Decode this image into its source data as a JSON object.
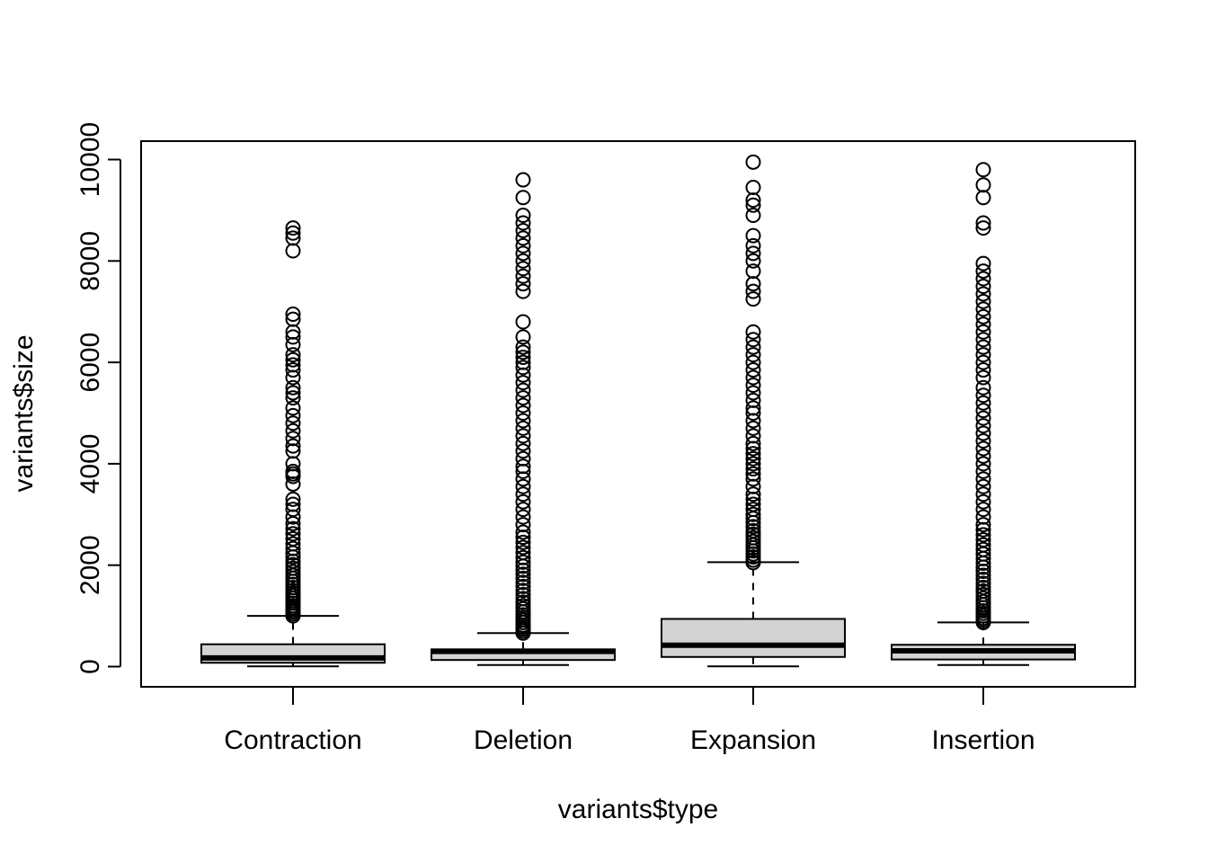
{
  "chart_data": {
    "type": "boxplot",
    "title": "",
    "xlabel": "variants$type",
    "ylabel": "variants$size",
    "ylim": [
      -400,
      10350
    ],
    "y_ticks": [
      0,
      2000,
      4000,
      6000,
      8000,
      10000
    ],
    "grid": false,
    "box_fill": "#d3d3d3",
    "categories": [
      "Contraction",
      "Deletion",
      "Expansion",
      "Insertion"
    ],
    "boxes": [
      {
        "name": "Contraction",
        "lower_whisker": 5,
        "q1": 75,
        "median": 170,
        "q3": 440,
        "upper_whisker": 1000,
        "outliers": [
          1000,
          1040,
          1080,
          1120,
          1160,
          1200,
          1250,
          1300,
          1350,
          1400,
          1450,
          1500,
          1560,
          1620,
          1680,
          1740,
          1800,
          1870,
          1940,
          2010,
          2080,
          2160,
          2240,
          2330,
          2420,
          2520,
          2620,
          2720,
          2820,
          2950,
          3100,
          3200,
          3300,
          3600,
          3750,
          3800,
          3850,
          4000,
          4250,
          4350,
          4500,
          4650,
          4800,
          4950,
          5100,
          5300,
          5400,
          5500,
          5700,
          5850,
          5950,
          6050,
          6150,
          6350,
          6500,
          6600,
          6850,
          6950,
          8200,
          8450,
          8550,
          8650
        ]
      },
      {
        "name": "Deletion",
        "lower_whisker": 30,
        "q1": 130,
        "median": 300,
        "q3": 340,
        "upper_whisker": 660,
        "outliers": [
          660,
          700,
          740,
          780,
          820,
          870,
          920,
          970,
          1020,
          1080,
          1140,
          1200,
          1270,
          1340,
          1420,
          1500,
          1580,
          1660,
          1740,
          1820,
          1900,
          1980,
          2060,
          2150,
          2250,
          2350,
          2450,
          2550,
          2650,
          2800,
          2950,
          3100,
          3250,
          3400,
          3550,
          3700,
          3850,
          3950,
          4100,
          4250,
          4400,
          4550,
          4700,
          4850,
          5000,
          5150,
          5300,
          5450,
          5600,
          5750,
          5900,
          6000,
          6100,
          6200,
          6300,
          6500,
          6800,
          7400,
          7550,
          7700,
          7850,
          8000,
          8150,
          8300,
          8450,
          8600,
          8750,
          8900,
          9250,
          9600
        ]
      },
      {
        "name": "Expansion",
        "lower_whisker": 5,
        "q1": 190,
        "median": 420,
        "q3": 940,
        "upper_whisker": 2060,
        "outliers": [
          2050,
          2100,
          2160,
          2220,
          2280,
          2340,
          2400,
          2470,
          2540,
          2610,
          2680,
          2760,
          2840,
          2920,
          3000,
          3100,
          3200,
          3300,
          3400,
          3550,
          3700,
          3800,
          3900,
          4000,
          4100,
          4200,
          4300,
          4400,
          4550,
          4700,
          4850,
          5000,
          5100,
          5250,
          5400,
          5550,
          5700,
          5850,
          6000,
          6150,
          6300,
          6450,
          6600,
          7250,
          7400,
          7550,
          7800,
          8000,
          8150,
          8300,
          8500,
          8900,
          9100,
          9200,
          9450,
          9950
        ]
      },
      {
        "name": "Insertion",
        "lower_whisker": 30,
        "q1": 140,
        "median": 310,
        "q3": 430,
        "upper_whisker": 870,
        "outliers": [
          870,
          910,
          950,
          1000,
          1050,
          1100,
          1160,
          1220,
          1280,
          1350,
          1420,
          1490,
          1560,
          1640,
          1720,
          1800,
          1880,
          1960,
          2040,
          2130,
          2220,
          2310,
          2400,
          2500,
          2600,
          2700,
          2800,
          2950,
          3100,
          3250,
          3400,
          3550,
          3700,
          3850,
          4000,
          4150,
          4300,
          4450,
          4600,
          4750,
          4900,
          5050,
          5200,
          5350,
          5500,
          5700,
          5850,
          6000,
          6150,
          6300,
          6450,
          6600,
          6750,
          6900,
          7050,
          7200,
          7350,
          7500,
          7650,
          7800,
          7950,
          8650,
          8750,
          9250,
          9500,
          9800
        ]
      }
    ]
  }
}
